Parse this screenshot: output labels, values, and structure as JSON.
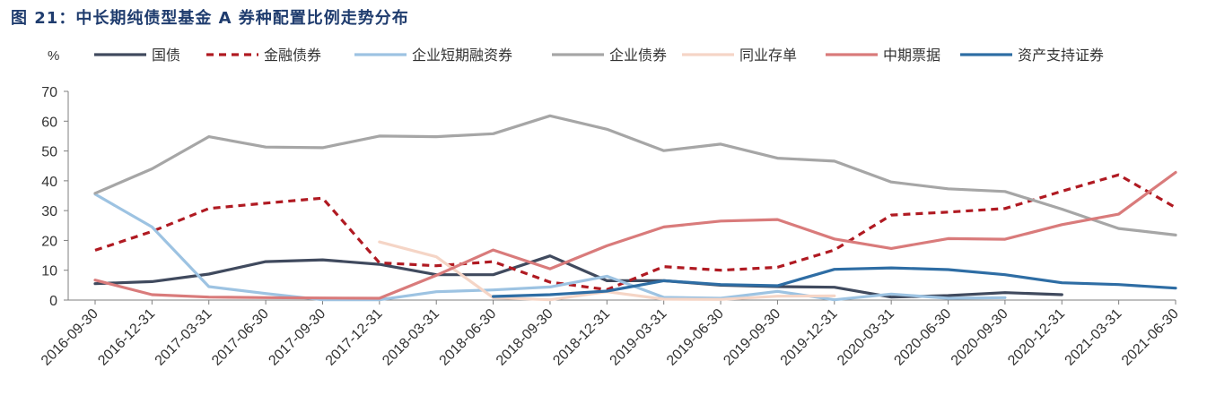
{
  "title": "图 21：中长期纯债型基金 A 券种配置比例走势分布",
  "chart_data": {
    "type": "line",
    "ylabel": "%",
    "xlabel": "",
    "ylim": [
      0,
      70
    ],
    "yticks": [
      0,
      10,
      20,
      30,
      40,
      50,
      60,
      70
    ],
    "x": [
      "2016-09-30",
      "2016-12-31",
      "2017-03-31",
      "2017-06-30",
      "2017-09-30",
      "2017-12-31",
      "2018-03-31",
      "2018-06-30",
      "2018-09-30",
      "2018-12-31",
      "2019-03-31",
      "2019-06-30",
      "2019-09-30",
      "2019-12-31",
      "2020-03-31",
      "2020-06-30",
      "2020-09-30",
      "2020-12-31",
      "2021-03-31",
      "2021-06-30"
    ],
    "grid": false,
    "legend_position": "top",
    "series": [
      {
        "name": "国债",
        "color": "#404a5e",
        "dash": "solid",
        "values": [
          5.5,
          6.2,
          8.7,
          12.9,
          13.5,
          12.0,
          8.5,
          8.5,
          14.8,
          6.5,
          6.5,
          5.0,
          4.5,
          4.3,
          1.0,
          1.5,
          2.5,
          1.8,
          null,
          null
        ]
      },
      {
        "name": "金融债券",
        "color": "#b01a22",
        "dash": "dashed",
        "values": [
          16.7,
          23.0,
          30.7,
          32.5,
          34.2,
          12.5,
          11.5,
          12.9,
          6.0,
          3.5,
          11.2,
          10.0,
          11.0,
          16.8,
          28.5,
          29.5,
          30.7,
          36.5,
          42.0,
          31.0
        ]
      },
      {
        "name": "企业短期融资券",
        "color": "#9dc3e2",
        "dash": "solid",
        "values": [
          35.5,
          24.5,
          4.5,
          2.2,
          0.1,
          0.1,
          2.8,
          3.4,
          4.4,
          8.0,
          0.9,
          0.6,
          2.9,
          0.1,
          2.0,
          0.6,
          0.8,
          null,
          null,
          null
        ]
      },
      {
        "name": "企业债券",
        "color": "#a6a6a6",
        "dash": "solid",
        "values": [
          35.8,
          44.0,
          54.8,
          51.3,
          51.1,
          55.0,
          54.8,
          55.8,
          61.8,
          57.3,
          50.1,
          52.3,
          47.6,
          46.6,
          39.6,
          37.3,
          36.4,
          30.5,
          24.0,
          21.8
        ]
      },
      {
        "name": "同业存单",
        "color": "#f5d5c6",
        "dash": "solid",
        "values": [
          null,
          null,
          null,
          null,
          null,
          19.5,
          14.5,
          0.8,
          0.1,
          2.8,
          0.3,
          0.2,
          1.3,
          1.4,
          null,
          null,
          null,
          null,
          null,
          null
        ]
      },
      {
        "name": "中期票据",
        "color": "#d97b7b",
        "dash": "solid",
        "values": [
          6.7,
          1.8,
          1.0,
          0.8,
          0.7,
          0.6,
          8.3,
          16.8,
          10.5,
          18.2,
          24.5,
          26.5,
          27.0,
          20.5,
          17.3,
          20.6,
          20.4,
          25.3,
          28.8,
          42.8
        ]
      },
      {
        "name": "资产支持证券",
        "color": "#2e6da4",
        "dash": "solid",
        "values": [
          null,
          null,
          null,
          null,
          null,
          null,
          null,
          1.2,
          1.8,
          3.0,
          6.5,
          5.2,
          4.8,
          10.3,
          10.8,
          10.2,
          8.5,
          5.8,
          5.2,
          4.0
        ]
      }
    ]
  }
}
